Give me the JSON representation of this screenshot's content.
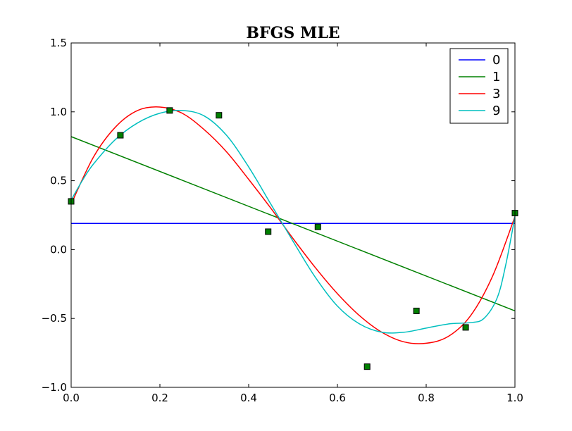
{
  "chart_data": {
    "type": "line",
    "title": "BFGS MLE",
    "xlabel": "",
    "ylabel": "",
    "xlim": [
      0.0,
      1.0
    ],
    "ylim": [
      -1.0,
      1.5
    ],
    "xticks": [
      0.0,
      0.2,
      0.4,
      0.6,
      0.8,
      1.0
    ],
    "xtick_labels": [
      "0.0",
      "0.2",
      "0.4",
      "0.6",
      "0.8",
      "1.0"
    ],
    "yticks": [
      -1.0,
      -0.5,
      0.0,
      0.5,
      1.0,
      1.5
    ],
    "ytick_labels": [
      "−1.0",
      "−0.5",
      "0.0",
      "0.5",
      "1.0",
      "1.5"
    ],
    "grid": false,
    "legend_position": "top-right",
    "points": {
      "color": "#008000",
      "marker": "square",
      "x": [
        0.0,
        0.111,
        0.222,
        0.333,
        0.444,
        0.556,
        0.667,
        0.778,
        0.889,
        1.0
      ],
      "y": [
        0.35,
        0.83,
        1.01,
        0.975,
        0.13,
        0.165,
        -0.85,
        -0.445,
        -0.565,
        0.265
      ]
    },
    "series": [
      {
        "name": "0",
        "color": "#0000ff",
        "x": [
          0.0,
          1.0
        ],
        "y": [
          0.19,
          0.19
        ]
      },
      {
        "name": "1",
        "color": "#008000",
        "x": [
          0.0,
          1.0
        ],
        "y": [
          0.82,
          -0.445
        ]
      },
      {
        "name": "3",
        "color": "#ff0000",
        "x": [
          0.0,
          0.05,
          0.1,
          0.15,
          0.2,
          0.25,
          0.3,
          0.35,
          0.4,
          0.45,
          0.5,
          0.55,
          0.6,
          0.65,
          0.7,
          0.75,
          0.8,
          0.85,
          0.9,
          0.95,
          1.0
        ],
        "y": [
          0.33,
          0.67,
          0.89,
          1.01,
          1.035,
          0.99,
          0.87,
          0.71,
          0.51,
          0.3,
          0.08,
          -0.13,
          -0.32,
          -0.48,
          -0.6,
          -0.67,
          -0.68,
          -0.63,
          -0.48,
          -0.19,
          0.24
        ]
      },
      {
        "name": "9",
        "color": "#00bfbf",
        "x": [
          0.0,
          0.025,
          0.05,
          0.1,
          0.15,
          0.2,
          0.25,
          0.3,
          0.35,
          0.4,
          0.45,
          0.5,
          0.55,
          0.6,
          0.65,
          0.7,
          0.75,
          0.8,
          0.85,
          0.9,
          0.93,
          0.96,
          0.98,
          1.0
        ],
        "y": [
          0.36,
          0.5,
          0.62,
          0.8,
          0.92,
          0.99,
          1.01,
          0.97,
          0.83,
          0.6,
          0.33,
          0.06,
          -0.2,
          -0.41,
          -0.54,
          -0.6,
          -0.6,
          -0.57,
          -0.54,
          -0.53,
          -0.5,
          -0.35,
          -0.1,
          0.24
        ]
      }
    ]
  }
}
